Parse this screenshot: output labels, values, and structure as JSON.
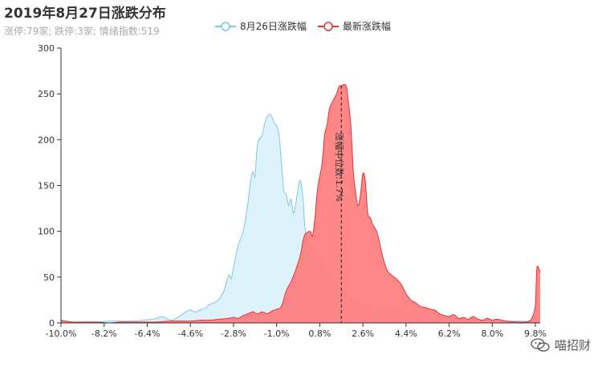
{
  "header": {
    "title": "2019年8月27日涨跌分布",
    "subtitle": "涨停:79家; 跌停:3家; 情绪指数:519"
  },
  "watermark": {
    "text": "喵招财",
    "icon": "wechat-icon"
  },
  "chart_data": {
    "type": "area",
    "xlim": [
      -10.0,
      10.0
    ],
    "ylim": [
      0,
      300
    ],
    "x_ticks": [
      -10.0,
      -8.2,
      -6.4,
      -4.6,
      -2.8,
      -1.0,
      0.8,
      2.6,
      4.4,
      6.2,
      8.0,
      9.8
    ],
    "x_tick_labels": [
      "-10.0%",
      "-8.2%",
      "-6.4%",
      "-4.6%",
      "-2.8%",
      "-1.0%",
      "0.8%",
      "2.6%",
      "4.4%",
      "6.2%",
      "8.0%",
      "9.8%"
    ],
    "y_ticks": [
      0,
      50,
      100,
      150,
      200,
      250,
      300
    ],
    "legend_position": "top",
    "grid": false,
    "median": {
      "x": 1.7,
      "label": "涨幅中位数:1.7%"
    },
    "series": [
      {
        "name": "8月26日涨跌幅",
        "color": "#7ec8e3",
        "fill": "#dcf1fb",
        "points": [
          [
            -10.0,
            3
          ],
          [
            -9.8,
            1
          ],
          [
            -9.5,
            0
          ],
          [
            -9.0,
            1
          ],
          [
            -8.5,
            1
          ],
          [
            -8.0,
            2
          ],
          [
            -7.5,
            2
          ],
          [
            -7.0,
            2
          ],
          [
            -6.6,
            3
          ],
          [
            -6.2,
            4
          ],
          [
            -6.0,
            5
          ],
          [
            -5.8,
            7
          ],
          [
            -5.6,
            5
          ],
          [
            -5.4,
            3
          ],
          [
            -5.2,
            5
          ],
          [
            -5.0,
            8
          ],
          [
            -4.8,
            12
          ],
          [
            -4.6,
            14
          ],
          [
            -4.4,
            12
          ],
          [
            -4.2,
            14
          ],
          [
            -4.0,
            16
          ],
          [
            -3.8,
            20
          ],
          [
            -3.6,
            22
          ],
          [
            -3.4,
            26
          ],
          [
            -3.2,
            35
          ],
          [
            -3.0,
            52
          ],
          [
            -2.9,
            48
          ],
          [
            -2.8,
            60
          ],
          [
            -2.6,
            85
          ],
          [
            -2.4,
            100
          ],
          [
            -2.2,
            130
          ],
          [
            -2.1,
            152
          ],
          [
            -2.0,
            165
          ],
          [
            -1.9,
            160
          ],
          [
            -1.8,
            195
          ],
          [
            -1.6,
            205
          ],
          [
            -1.5,
            218
          ],
          [
            -1.4,
            225
          ],
          [
            -1.3,
            228
          ],
          [
            -1.2,
            225
          ],
          [
            -1.1,
            218
          ],
          [
            -1.0,
            215
          ],
          [
            -0.9,
            205
          ],
          [
            -0.8,
            175
          ],
          [
            -0.7,
            145
          ],
          [
            -0.6,
            140
          ],
          [
            -0.5,
            128
          ],
          [
            -0.4,
            135
          ],
          [
            -0.3,
            120
          ],
          [
            -0.2,
            130
          ],
          [
            -0.1,
            148
          ],
          [
            0.0,
            155
          ],
          [
            0.1,
            135
          ],
          [
            0.2,
            100
          ],
          [
            0.4,
            85
          ],
          [
            0.6,
            80
          ],
          [
            0.8,
            72
          ],
          [
            1.0,
            60
          ],
          [
            1.2,
            55
          ],
          [
            1.4,
            45
          ],
          [
            1.6,
            38
          ],
          [
            1.8,
            33
          ],
          [
            2.0,
            28
          ],
          [
            2.2,
            24
          ],
          [
            2.4,
            22
          ],
          [
            2.6,
            18
          ],
          [
            2.8,
            20
          ],
          [
            3.0,
            17
          ],
          [
            3.2,
            13
          ],
          [
            3.4,
            16
          ],
          [
            3.6,
            14
          ],
          [
            3.8,
            17
          ],
          [
            4.0,
            12
          ],
          [
            4.2,
            15
          ],
          [
            4.4,
            10
          ],
          [
            4.6,
            12
          ],
          [
            4.8,
            14
          ],
          [
            5.0,
            10
          ],
          [
            5.2,
            12
          ],
          [
            5.4,
            9
          ],
          [
            5.6,
            8
          ],
          [
            5.8,
            7
          ],
          [
            6.0,
            6
          ],
          [
            6.4,
            5
          ],
          [
            6.8,
            4
          ],
          [
            7.2,
            4
          ],
          [
            7.6,
            3
          ],
          [
            8.0,
            3
          ],
          [
            8.4,
            2
          ],
          [
            8.8,
            2
          ],
          [
            9.2,
            2
          ],
          [
            9.5,
            2
          ],
          [
            9.7,
            5
          ],
          [
            9.8,
            8
          ],
          [
            10.0,
            6
          ]
        ]
      },
      {
        "name": "最新涨跌幅",
        "color": "#e63232",
        "fill": "#ff7a7a",
        "points": [
          [
            -10.0,
            3
          ],
          [
            -9.8,
            2
          ],
          [
            -9.5,
            1
          ],
          [
            -9.0,
            1
          ],
          [
            -8.5,
            1
          ],
          [
            -8.0,
            0
          ],
          [
            -7.5,
            1
          ],
          [
            -7.0,
            1
          ],
          [
            -6.5,
            1
          ],
          [
            -6.0,
            1
          ],
          [
            -5.5,
            2
          ],
          [
            -5.0,
            2
          ],
          [
            -4.6,
            2
          ],
          [
            -4.2,
            3
          ],
          [
            -3.8,
            3
          ],
          [
            -3.4,
            4
          ],
          [
            -3.0,
            5
          ],
          [
            -2.8,
            6
          ],
          [
            -2.6,
            5
          ],
          [
            -2.4,
            8
          ],
          [
            -2.2,
            10
          ],
          [
            -2.0,
            12
          ],
          [
            -1.8,
            10
          ],
          [
            -1.6,
            12
          ],
          [
            -1.4,
            10
          ],
          [
            -1.2,
            13
          ],
          [
            -1.0,
            15
          ],
          [
            -0.8,
            18
          ],
          [
            -0.6,
            35
          ],
          [
            -0.4,
            45
          ],
          [
            -0.2,
            58
          ],
          [
            0.0,
            75
          ],
          [
            0.1,
            90
          ],
          [
            0.2,
            97
          ],
          [
            0.4,
            100
          ],
          [
            0.5,
            95
          ],
          [
            0.6,
            115
          ],
          [
            0.7,
            145
          ],
          [
            0.8,
            160
          ],
          [
            0.9,
            175
          ],
          [
            1.0,
            205
          ],
          [
            1.1,
            215
          ],
          [
            1.2,
            233
          ],
          [
            1.3,
            240
          ],
          [
            1.4,
            245
          ],
          [
            1.5,
            250
          ],
          [
            1.6,
            258
          ],
          [
            1.7,
            259
          ],
          [
            1.9,
            259
          ],
          [
            2.0,
            240
          ],
          [
            2.1,
            215
          ],
          [
            2.2,
            165
          ],
          [
            2.3,
            142
          ],
          [
            2.4,
            128
          ],
          [
            2.5,
            140
          ],
          [
            2.6,
            163
          ],
          [
            2.7,
            155
          ],
          [
            2.8,
            120
          ],
          [
            2.9,
            115
          ],
          [
            3.0,
            108
          ],
          [
            3.2,
            98
          ],
          [
            3.4,
            75
          ],
          [
            3.6,
            58
          ],
          [
            3.8,
            52
          ],
          [
            4.0,
            48
          ],
          [
            4.2,
            42
          ],
          [
            4.4,
            32
          ],
          [
            4.6,
            25
          ],
          [
            4.8,
            22
          ],
          [
            5.0,
            18
          ],
          [
            5.2,
            17
          ],
          [
            5.4,
            15
          ],
          [
            5.6,
            14
          ],
          [
            5.8,
            10
          ],
          [
            6.0,
            8
          ],
          [
            6.2,
            7
          ],
          [
            6.4,
            9
          ],
          [
            6.6,
            5
          ],
          [
            6.8,
            6
          ],
          [
            7.0,
            4
          ],
          [
            7.2,
            7
          ],
          [
            7.4,
            4
          ],
          [
            7.6,
            3
          ],
          [
            7.8,
            5
          ],
          [
            8.0,
            3
          ],
          [
            8.2,
            4
          ],
          [
            8.6,
            2
          ],
          [
            9.0,
            1
          ],
          [
            9.4,
            1
          ],
          [
            9.6,
            3
          ],
          [
            9.7,
            8
          ],
          [
            9.8,
            20
          ],
          [
            9.85,
            55
          ],
          [
            9.9,
            62
          ],
          [
            10.0,
            55
          ]
        ]
      }
    ]
  }
}
